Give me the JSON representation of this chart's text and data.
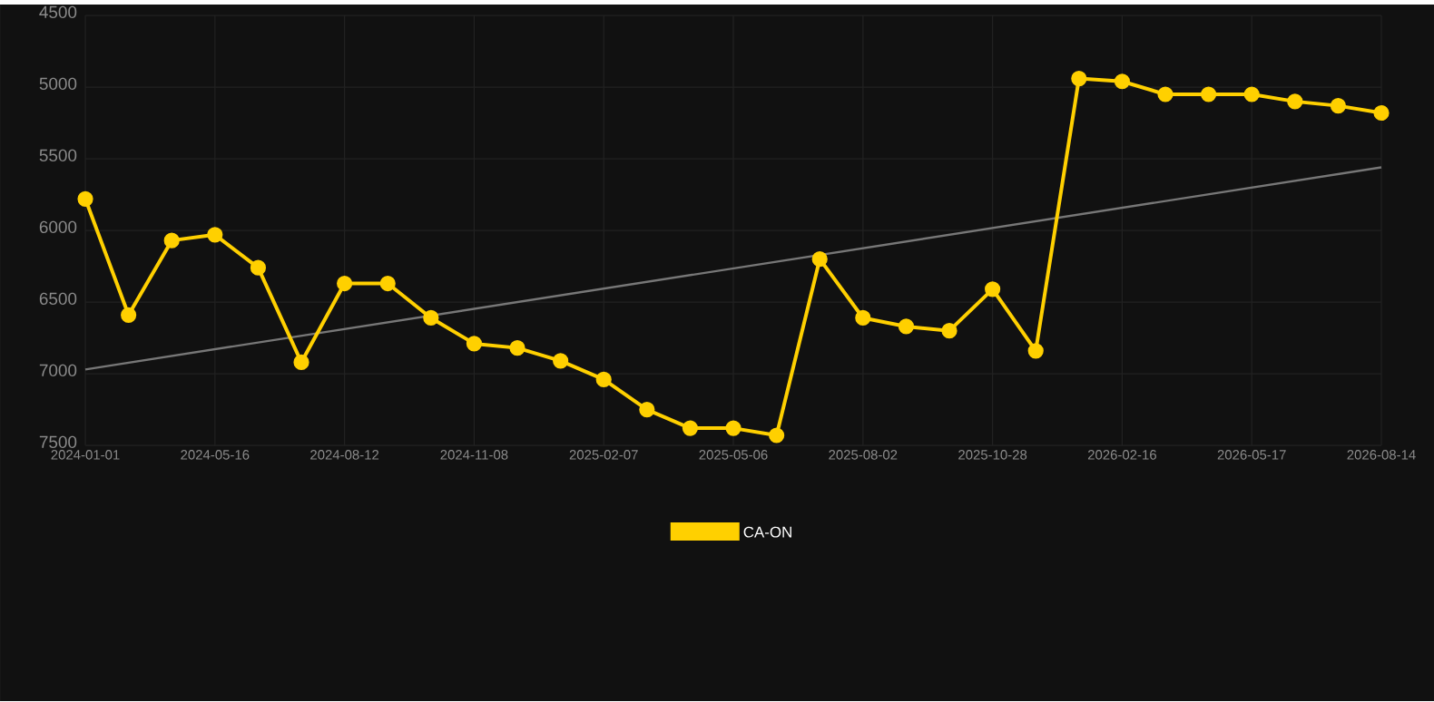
{
  "chart_data": {
    "type": "line",
    "ylim": [
      7500,
      4500
    ],
    "yticks": [
      4500,
      5000,
      5500,
      6000,
      6500,
      7000,
      7500
    ],
    "categories": [
      "2024-01-01",
      null,
      null,
      "2024-05-16",
      null,
      null,
      "2024-08-12",
      null,
      null,
      "2024-11-08",
      null,
      null,
      "2025-02-07",
      null,
      null,
      "2025-05-06",
      null,
      null,
      "2025-08-02",
      null,
      null,
      "2025-10-28",
      null,
      null,
      "2026-02-16",
      null,
      null,
      "2026-05-17",
      null,
      null,
      "2026-08-14"
    ],
    "grid": true,
    "legend": "bottom",
    "series": [
      {
        "name": "CA-ON",
        "color": "#ffd000",
        "marker": "circle",
        "values": [
          5780,
          6590,
          6070,
          6030,
          6260,
          6920,
          6370,
          6370,
          6610,
          6790,
          6820,
          6910,
          7040,
          7250,
          7380,
          7380,
          7430,
          6200,
          6610,
          6670,
          6700,
          6410,
          6840,
          4940,
          4960,
          5050,
          5050,
          5050,
          5100,
          5130,
          5180
        ]
      },
      {
        "type": "line",
        "color": "#777777",
        "marker": "none",
        "values": [
          6970,
          null,
          null,
          null,
          null,
          null,
          null,
          null,
          null,
          null,
          null,
          null,
          null,
          null,
          null,
          null,
          null,
          null,
          null,
          null,
          null,
          null,
          null,
          null,
          null,
          null,
          null,
          null,
          null,
          null,
          5560
        ]
      }
    ]
  }
}
